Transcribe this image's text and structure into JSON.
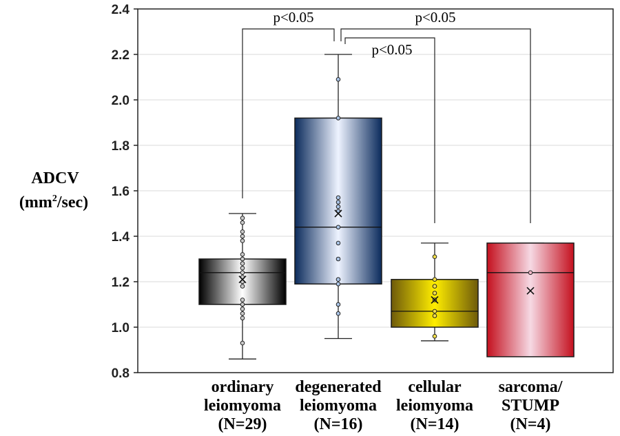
{
  "chart_data": {
    "type": "box",
    "ylabel": {
      "line1": "ADCV",
      "line2_pre": "(mm",
      "line2_sup": "2",
      "line2_post": "/sec)"
    },
    "ylim": [
      0.8,
      2.4
    ],
    "yticks": [
      0.8,
      1.0,
      1.2,
      1.4,
      1.6,
      1.8,
      2.0,
      2.2,
      2.4
    ],
    "grid": true,
    "groups": [
      {
        "label": [
          "ordinary",
          "leiomyoma",
          "(N=29)"
        ],
        "min": 0.86,
        "q1": 1.1,
        "median": 1.24,
        "q3": 1.3,
        "max": 1.5,
        "mean": 1.21,
        "points": [
          0.93,
          1.04,
          1.06,
          1.08,
          1.1,
          1.12,
          1.18,
          1.2,
          1.22,
          1.24,
          1.26,
          1.28,
          1.3,
          1.32,
          1.38,
          1.4,
          1.42,
          1.46,
          1.48
        ],
        "gradient": [
          "#000000",
          "#ffffff",
          "#000000"
        ],
        "point_fill": "#cccccc"
      },
      {
        "label": [
          "degenerated",
          "leiomyoma",
          "(N=16)"
        ],
        "min": 0.95,
        "q1": 1.19,
        "median": 1.44,
        "q3": 1.92,
        "max": 2.2,
        "mean": 1.5,
        "points": [
          1.06,
          1.1,
          1.19,
          1.21,
          1.3,
          1.37,
          1.44,
          1.51,
          1.53,
          1.55,
          1.57,
          1.92,
          2.09
        ],
        "gradient": [
          "#0b2b5c",
          "#eef3ff",
          "#0b2b5c"
        ],
        "point_fill": "#aac4e6"
      },
      {
        "label": [
          "cellular",
          "leiomyoma",
          "(N=14)"
        ],
        "min": 0.94,
        "q1": 1.0,
        "median": 1.07,
        "q3": 1.21,
        "max": 1.37,
        "mean": 1.12,
        "points": [
          0.96,
          1.05,
          1.07,
          1.12,
          1.15,
          1.18,
          1.21,
          1.31
        ],
        "gradient": [
          "#6e5a0a",
          "#ffee00",
          "#6e5a0a"
        ],
        "point_fill": "#f4e04a"
      },
      {
        "label": [
          "sarcoma/",
          "STUMP",
          "(N=4)"
        ],
        "min": 0.87,
        "q1": 0.87,
        "median": 1.24,
        "q3": 1.37,
        "max": 1.37,
        "mean": 1.16,
        "points": [
          1.24
        ],
        "gradient": [
          "#c4101e",
          "#f6d9e4",
          "#c4101e"
        ],
        "point_fill": "#f2b8c8"
      }
    ],
    "significance": [
      {
        "from": 0,
        "to": 1,
        "label": "p<0.05"
      },
      {
        "from": 1,
        "to": 3,
        "label": "p<0.05"
      },
      {
        "from": 1,
        "to": 2,
        "label": "p<0.05"
      }
    ],
    "colors": {
      "box_edge": "#1a1a1a",
      "whisker": "#222222",
      "grid": "#d9d9d9",
      "frame": "#222222"
    }
  }
}
